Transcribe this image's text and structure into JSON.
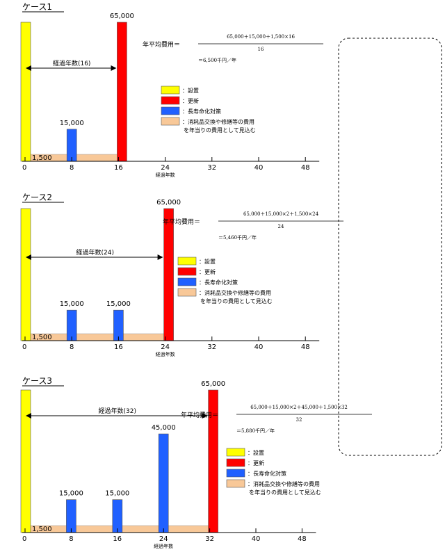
{
  "legend_colors": {
    "installation": "#ffff00",
    "renewal": "#ff0000",
    "life_extension": "#2060ff",
    "maintenance": "#f8c898"
  },
  "chart_data": [
    {
      "type": "bar",
      "title": "ケース1",
      "xlabel": "経過年数",
      "x_ticks": [
        0,
        8,
        16,
        24,
        32,
        40,
        48
      ],
      "xlim": [
        0,
        48
      ],
      "span_label": "経過年数(16)",
      "span_end": 16,
      "bars": [
        {
          "x": 0,
          "value": 65000,
          "type": "installation",
          "label": ""
        },
        {
          "x": 8,
          "value": 15000,
          "type": "life_extension",
          "label": "15,000"
        },
        {
          "x": 16,
          "value": 65000,
          "type": "renewal",
          "label": "65,000"
        }
      ],
      "maintenance": {
        "value": 1500,
        "label": "1,500",
        "from": 0,
        "to": 16
      },
      "formula": {
        "lhs": "年平均費用＝",
        "numerator": "65,000＋15,000＋1,500×16",
        "denominator": "16",
        "result": "＝6,500千円／年"
      },
      "legend": [
        {
          "type": "installation",
          "label": "：設置"
        },
        {
          "type": "renewal",
          "label": "：更新"
        },
        {
          "type": "life_extension",
          "label": "：長寿命化対策"
        },
        {
          "type": "maintenance",
          "label": "：消耗品交換や修繕等の費用",
          "sub": "を年当りの費用として見込む"
        }
      ]
    },
    {
      "type": "bar",
      "title": "ケース2",
      "xlabel": "経過年数",
      "x_ticks": [
        0,
        8,
        16,
        24,
        32,
        40,
        48
      ],
      "xlim": [
        0,
        48
      ],
      "span_label": "経過年数(24)",
      "span_end": 24,
      "bars": [
        {
          "x": 0,
          "value": 65000,
          "type": "installation",
          "label": ""
        },
        {
          "x": 8,
          "value": 15000,
          "type": "life_extension",
          "label": "15,000"
        },
        {
          "x": 16,
          "value": 15000,
          "type": "life_extension",
          "label": "15,000"
        },
        {
          "x": 24,
          "value": 65000,
          "type": "renewal",
          "label": "65,000"
        }
      ],
      "maintenance": {
        "value": 1500,
        "label": "1,500",
        "from": 0,
        "to": 24
      },
      "formula": {
        "lhs": "年平均費用＝",
        "numerator": "65,000＋15,000×2＋1,500×24",
        "denominator": "24",
        "result": "＝5,460千円／年"
      },
      "legend": [
        {
          "type": "installation",
          "label": "：設置"
        },
        {
          "type": "renewal",
          "label": "：更新"
        },
        {
          "type": "life_extension",
          "label": "：長寿命化対策"
        },
        {
          "type": "maintenance",
          "label": "：消耗品交換や修繕等の費用",
          "sub": "を年当りの費用として見込む"
        }
      ]
    },
    {
      "type": "bar",
      "title": "ケース3",
      "xlabel": "経過年数",
      "x_ticks": [
        0,
        8,
        16,
        24,
        32,
        40,
        48
      ],
      "xlim": [
        0,
        48
      ],
      "span_label": "経過年数(32)",
      "span_end": 32,
      "bars": [
        {
          "x": 0,
          "value": 65000,
          "type": "installation",
          "label": ""
        },
        {
          "x": 8,
          "value": 15000,
          "type": "life_extension",
          "label": "15,000"
        },
        {
          "x": 16,
          "value": 15000,
          "type": "life_extension",
          "label": "15,000"
        },
        {
          "x": 24,
          "value": 45000,
          "type": "life_extension",
          "label": "45,000"
        },
        {
          "x": 32,
          "value": 65000,
          "type": "renewal",
          "label": "65,000"
        }
      ],
      "maintenance": {
        "value": 1500,
        "label": "1,500",
        "from": 0,
        "to": 32
      },
      "formula": {
        "lhs": "年平均費用＝",
        "numerator": "65,000＋15,000×2＋45,000＋1,500×32",
        "denominator": "32",
        "result": "＝5,880千円／年"
      },
      "legend": [
        {
          "type": "installation",
          "label": "：設置"
        },
        {
          "type": "renewal",
          "label": "：更新"
        },
        {
          "type": "life_extension",
          "label": "：長寿命化対策"
        },
        {
          "type": "maintenance",
          "label": "：消耗品交換や修繕等の費用",
          "sub": "を年当りの費用として見込む"
        }
      ]
    }
  ]
}
